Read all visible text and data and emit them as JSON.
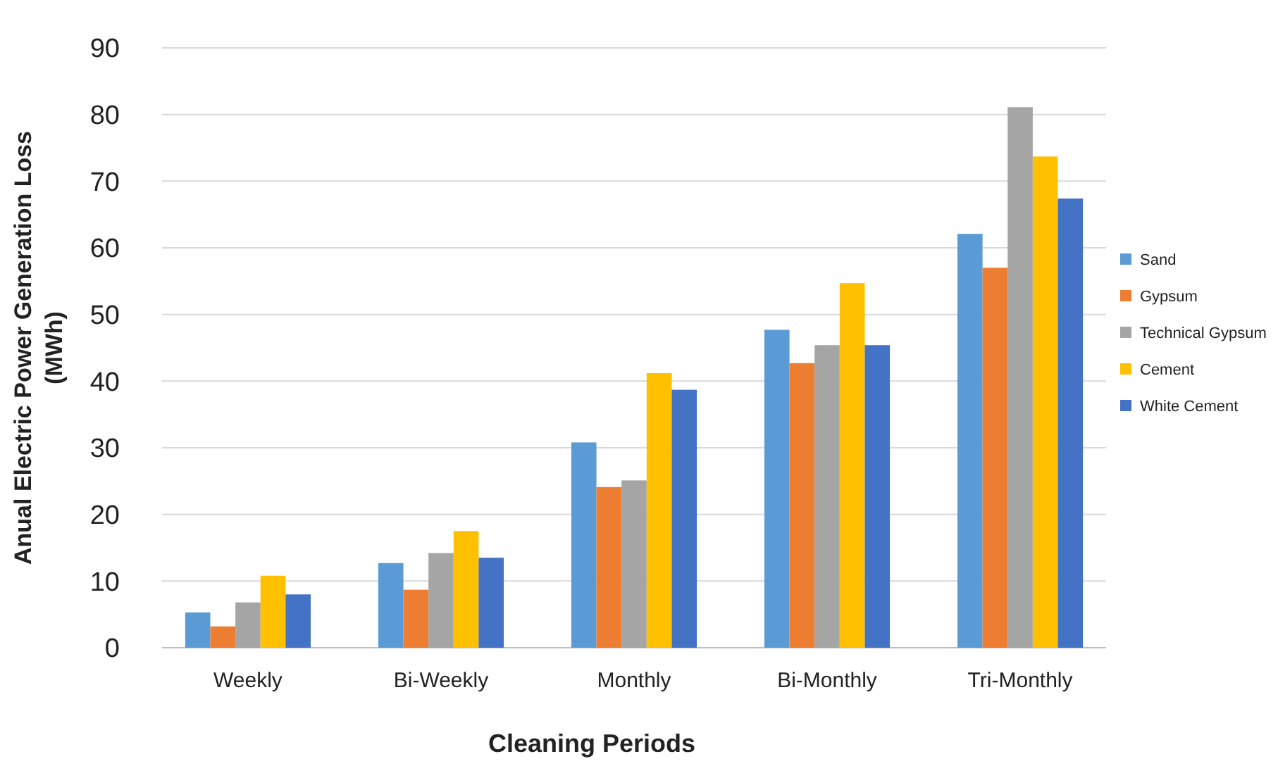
{
  "chart_data": {
    "type": "bar",
    "xlabel": "Cleaning Periods",
    "ylabel": "Anual Electric Power Generation Loss (MWh)",
    "categories": [
      "Weekly",
      "Bi-Weekly",
      "Monthly",
      "Bi-Monthly",
      "Tri-Monthly"
    ],
    "series": [
      {
        "name": "Sand",
        "color": "#5b9bd5",
        "values": [
          5.3,
          12.7,
          30.8,
          47.7,
          62.1
        ]
      },
      {
        "name": "Gypsum",
        "color": "#ed7d31",
        "values": [
          3.2,
          8.7,
          24.1,
          42.7,
          57.0
        ]
      },
      {
        "name": "Technical Gypsum",
        "color": "#a5a5a5",
        "values": [
          6.8,
          14.2,
          25.1,
          45.4,
          81.1
        ]
      },
      {
        "name": "Cement",
        "color": "#ffc000",
        "values": [
          10.8,
          17.5,
          41.2,
          54.7,
          73.7
        ]
      },
      {
        "name": "White Cement",
        "color": "#4472c4",
        "values": [
          8.0,
          13.5,
          38.7,
          45.4,
          67.4
        ]
      }
    ],
    "ylim": [
      0,
      90
    ],
    "yticks": [
      0,
      10,
      20,
      30,
      40,
      50,
      60,
      70,
      80,
      90
    ],
    "grid": "y",
    "legend": "right"
  }
}
